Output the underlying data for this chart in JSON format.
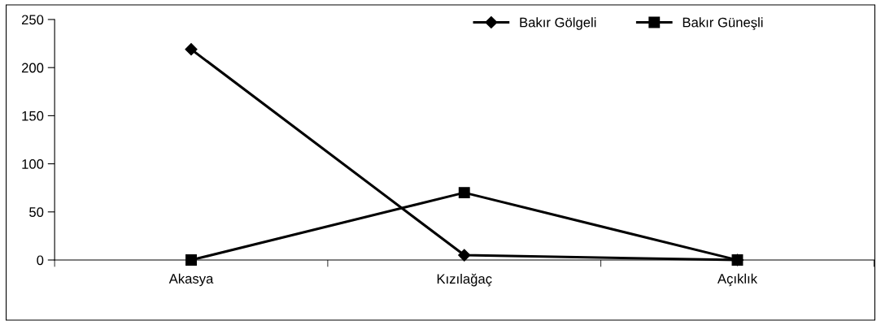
{
  "chart_data": {
    "type": "line",
    "categories": [
      "Akasya",
      "Kızılağaç",
      "Açıklık"
    ],
    "series": [
      {
        "name": "Bakır Gölgeli",
        "color": "#000000",
        "values": [
          219,
          5,
          0
        ],
        "marker": "diamond"
      },
      {
        "name": "Bakır Güneşli",
        "color": "#000000",
        "values": [
          0,
          70,
          0
        ],
        "marker": "square"
      }
    ],
    "ylim": [
      0,
      250
    ],
    "yticks": [
      0,
      50,
      100,
      150,
      200,
      250
    ],
    "grid": false,
    "legend": "top right",
    "line_style": "solid"
  }
}
